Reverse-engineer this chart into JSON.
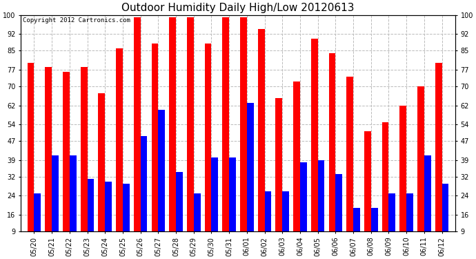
{
  "title": "Outdoor Humidity Daily High/Low 20120613",
  "copyright": "Copyright 2012 Cartronics.com",
  "labels": [
    "05/20",
    "05/21",
    "05/22",
    "05/23",
    "05/24",
    "05/25",
    "05/26",
    "05/27",
    "05/28",
    "05/29",
    "05/30",
    "05/31",
    "06/01",
    "06/02",
    "06/03",
    "06/04",
    "06/05",
    "06/06",
    "06/07",
    "06/08",
    "06/09",
    "06/10",
    "06/11",
    "06/12"
  ],
  "high": [
    80,
    78,
    76,
    78,
    67,
    86,
    99,
    88,
    99,
    99,
    88,
    99,
    99,
    94,
    65,
    72,
    90,
    84,
    74,
    51,
    55,
    62,
    70,
    80
  ],
  "low": [
    25,
    41,
    41,
    31,
    30,
    29,
    49,
    60,
    34,
    25,
    40,
    40,
    63,
    26,
    26,
    38,
    39,
    33,
    19,
    19,
    25,
    25,
    41,
    29
  ],
  "bar_width": 0.38,
  "high_color": "#FF0000",
  "low_color": "#0000FF",
  "bg_color": "#FFFFFF",
  "plot_bg_color": "#FFFFFF",
  "grid_color": "#BBBBBB",
  "ymin": 9,
  "ymax": 100,
  "yticks": [
    9,
    16,
    24,
    32,
    39,
    47,
    54,
    62,
    70,
    77,
    85,
    92,
    100
  ],
  "title_fontsize": 11,
  "tick_fontsize": 7,
  "copyright_fontsize": 6.5
}
